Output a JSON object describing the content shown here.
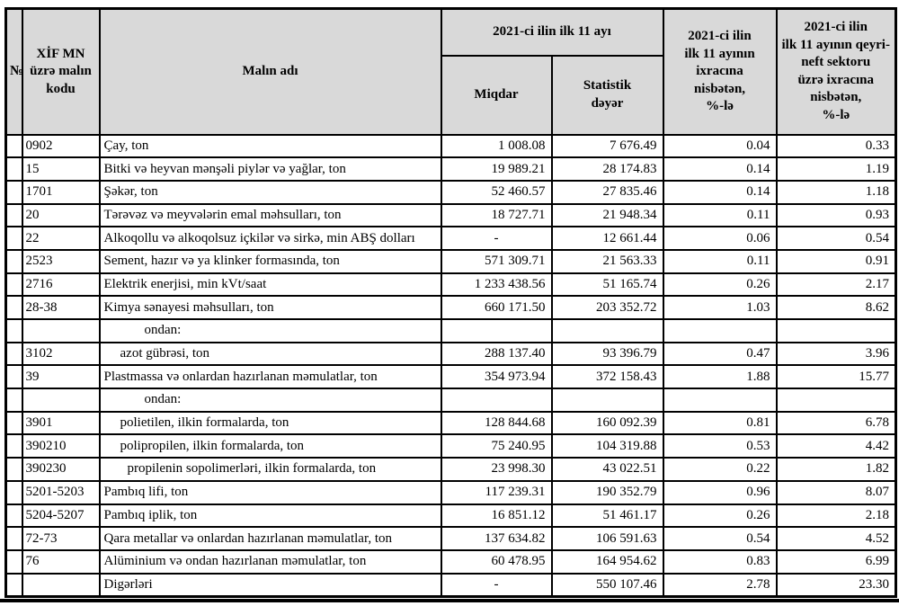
{
  "colors": {
    "header_bg": "#d9d9d9",
    "border": "#000000",
    "page_bg": "#ffffff"
  },
  "table": {
    "headers": {
      "no": "№",
      "code": "XİF MN\nüzrə malın\nkodu",
      "name": "Malın adı",
      "period_group": "2021-ci ilin ilk 11 ayı",
      "qty": "Miqdar",
      "stat_value": "Statistik\ndəyər",
      "share_total": "2021-ci ilin\nilk 11 ayının\nixracına\nnisbətən,\n%-lə",
      "share_nonoil": "2021-ci ilin\nilk 11 ayının qeyri-\nneft sektoru\nüzrə ixracına\nnisbətən,\n%-lə"
    },
    "rows": [
      {
        "no": "",
        "code": "0902",
        "name": "Çay, ton",
        "indent": 0,
        "qty": "1 008.08",
        "value": "7 676.49",
        "share": "0.04",
        "nonoil": "0.33"
      },
      {
        "no": "",
        "code": "15",
        "name": "Bitki və heyvan mənşəli piylər və yağlar, ton",
        "indent": 0,
        "qty": "19 989.21",
        "value": "28 174.83",
        "share": "0.14",
        "nonoil": "1.19"
      },
      {
        "no": "",
        "code": "1701",
        "name": "Şəkər, ton",
        "indent": 0,
        "qty": "52 460.57",
        "value": "27 835.46",
        "share": "0.14",
        "nonoil": "1.18"
      },
      {
        "no": "",
        "code": "20",
        "name": "Tərəvəz və meyvələrin emal məhsulları, ton",
        "indent": 0,
        "qty": "18 727.71",
        "value": "21 948.34",
        "share": "0.11",
        "nonoil": "0.93"
      },
      {
        "no": "",
        "code": "22",
        "name": "Alkoqollu və alkoqolsuz içkilər və sirkə, min ABŞ dolları",
        "indent": 0,
        "qty": "-",
        "value": "12 661.44",
        "share": "0.06",
        "nonoil": "0.54"
      },
      {
        "no": "",
        "code": "2523",
        "name": "Sement, hazır və ya klinker formasında, ton",
        "indent": 0,
        "qty": "571 309.71",
        "value": "21 563.33",
        "share": "0.11",
        "nonoil": "0.91"
      },
      {
        "no": "",
        "code": "2716",
        "name": "Elektrik enerjisi, min kVt/saat",
        "indent": 0,
        "qty": "1 233 438.56",
        "value": "51 165.74",
        "share": "0.26",
        "nonoil": "2.17"
      },
      {
        "no": "",
        "code": "28-38",
        "name": "Kimya sənayesi məhsulları, ton",
        "indent": 0,
        "qty": "660 171.50",
        "value": "203 352.72",
        "share": "1.03",
        "nonoil": "8.62"
      },
      {
        "no": "",
        "code": "",
        "name": "ondan:",
        "indent": 3,
        "qty": "",
        "value": "",
        "share": "",
        "nonoil": ""
      },
      {
        "no": "",
        "code": "3102",
        "name": "azot gübrəsi, ton",
        "indent": 1,
        "qty": "288 137.40",
        "value": "93 396.79",
        "share": "0.47",
        "nonoil": "3.96"
      },
      {
        "no": "",
        "code": "39",
        "name": "Plastmassa və onlardan hazırlanan məmulatlar, ton",
        "indent": 0,
        "qty": "354 973.94",
        "value": "372 158.43",
        "share": "1.88",
        "nonoil": "15.77"
      },
      {
        "no": "",
        "code": "",
        "name": "ondan:",
        "indent": 3,
        "qty": "",
        "value": "",
        "share": "",
        "nonoil": ""
      },
      {
        "no": "",
        "code": "3901",
        "name": "polietilen, ilkin formalarda, ton",
        "indent": 1,
        "qty": "128 844.68",
        "value": "160 092.39",
        "share": "0.81",
        "nonoil": "6.78"
      },
      {
        "no": "",
        "code": "390210",
        "name": "polipropilen, ilkin formalarda, ton",
        "indent": 1,
        "qty": "75 240.95",
        "value": "104 319.88",
        "share": "0.53",
        "nonoil": "4.42"
      },
      {
        "no": "",
        "code": "390230",
        "name": "propilenin sopolimerləri, ilkin formalarda, ton",
        "indent": 2,
        "qty": "23 998.30",
        "value": "43 022.51",
        "share": "0.22",
        "nonoil": "1.82"
      },
      {
        "no": "",
        "code": "5201-5203",
        "name": "Pambıq lifi, ton",
        "indent": 0,
        "qty": "117 239.31",
        "value": "190 352.79",
        "share": "0.96",
        "nonoil": "8.07"
      },
      {
        "no": "",
        "code": "5204-5207",
        "name": "Pambıq iplik, ton",
        "indent": 0,
        "qty": "16 851.12",
        "value": "51 461.17",
        "share": "0.26",
        "nonoil": "2.18"
      },
      {
        "no": "",
        "code": "72-73",
        "name": "Qara metallar və onlardan hazırlanan məmulatlar, ton",
        "indent": 0,
        "qty": "137 634.82",
        "value": "106 591.63",
        "share": "0.54",
        "nonoil": "4.52"
      },
      {
        "no": "",
        "code": "76",
        "name": "Alüminium və ondan hazırlanan məmulatlar, ton",
        "indent": 0,
        "qty": "60 478.95",
        "value": "164 954.62",
        "share": "0.83",
        "nonoil": "6.99"
      },
      {
        "no": "",
        "code": "",
        "name": "Digərləri",
        "indent": 0,
        "qty": "-",
        "value": "550 107.46",
        "share": "2.78",
        "nonoil": "23.30"
      }
    ]
  }
}
